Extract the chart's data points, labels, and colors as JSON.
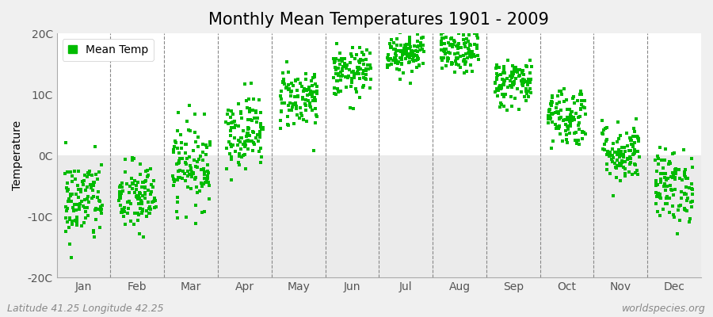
{
  "title": "Monthly Mean Temperatures 1901 - 2009",
  "ylabel": "Temperature",
  "ylim": [
    -20,
    20
  ],
  "yticks": [
    -20,
    -10,
    0,
    10,
    20
  ],
  "ytick_labels": [
    "-20C",
    "-10C",
    "0C",
    "10C",
    "20C"
  ],
  "months": [
    "Jan",
    "Feb",
    "Mar",
    "Apr",
    "May",
    "Jun",
    "Jul",
    "Aug",
    "Sep",
    "Oct",
    "Nov",
    "Dec"
  ],
  "mean_temps": [
    -7.5,
    -7.0,
    -1.5,
    4.0,
    9.5,
    13.5,
    17.0,
    17.0,
    12.0,
    6.5,
    0.5,
    -5.0
  ],
  "temp_spread": [
    3.5,
    3.0,
    3.5,
    3.0,
    2.5,
    2.0,
    1.8,
    1.8,
    2.0,
    2.5,
    2.5,
    3.0
  ],
  "n_years": 109,
  "dot_color": "#00bb00",
  "dot_size": 12,
  "background_color": "#f0f0f0",
  "plot_bg_color": "#ffffff",
  "band_color": "#ebebeb",
  "grid_color": "#888888",
  "legend_label": "Mean Temp",
  "bottom_left_text": "Latitude 41.25 Longitude 42.25",
  "bottom_right_text": "worldspecies.org",
  "title_fontsize": 15,
  "axis_fontsize": 10,
  "tick_fontsize": 10,
  "annotation_fontsize": 9
}
